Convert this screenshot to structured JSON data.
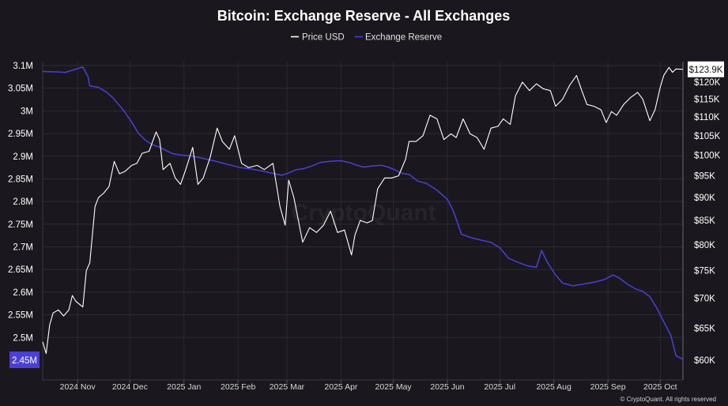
{
  "chart_data": {
    "type": "line",
    "title": "Bitcoin: Exchange Reserve - All Exchanges",
    "legend": [
      "Price USD",
      "Exchange Reserve"
    ],
    "legend_position": "top-center",
    "grid": true,
    "colors": {
      "price": "#ffffff",
      "reserve": "#4b3fd6",
      "background": "#1a181e"
    },
    "y_left": {
      "ticks": [
        "3.1M",
        "3.05M",
        "3M",
        "2.95M",
        "2.9M",
        "2.85M",
        "2.8M",
        "2.75M",
        "2.7M",
        "2.65M",
        "2.6M",
        "2.55M",
        "2.5M"
      ],
      "min": 2.43,
      "max": 3.11
    },
    "y_right": {
      "ticks": [
        "$120K",
        "$115K",
        "$110K",
        "$105K",
        "$100K",
        "$95K",
        "$90K",
        "$85K",
        "$80K",
        "$75K",
        "$70K",
        "$65K",
        "$60K"
      ],
      "scale": "log",
      "min": 58,
      "max": 126
    },
    "x_ticks": [
      "2024 Nov",
      "2024 Dec",
      "2025 Jan",
      "2025 Feb",
      "2025 Mar",
      "2025 Apr",
      "2025 May",
      "2025 Jun",
      "2025 Jul",
      "2025 Aug",
      "2025 Sep",
      "2025 Oct"
    ],
    "x_range": [
      "2024-10-12",
      "2025-10-14"
    ],
    "last_values": {
      "reserve": "2.45M",
      "price": "$123.9K"
    },
    "watermark": "CryptoQuant",
    "credit": "© CryptoQuant. All rights reserved",
    "series": [
      {
        "name": "Exchange Reserve",
        "axis": "left",
        "points": [
          [
            "2024-10-12",
            3.087
          ],
          [
            "2024-10-20",
            3.086
          ],
          [
            "2024-10-25",
            3.085
          ],
          [
            "2024-10-31",
            3.092
          ],
          [
            "2024-11-04",
            3.097
          ],
          [
            "2024-11-07",
            3.075
          ],
          [
            "2024-11-08",
            3.055
          ],
          [
            "2024-11-13",
            3.052
          ],
          [
            "2024-11-18",
            3.04
          ],
          [
            "2024-11-21",
            3.03
          ],
          [
            "2024-11-25",
            3.012
          ],
          [
            "2024-11-28",
            2.998
          ],
          [
            "2024-12-02",
            2.975
          ],
          [
            "2024-12-06",
            2.95
          ],
          [
            "2024-12-10",
            2.935
          ],
          [
            "2024-12-14",
            2.925
          ],
          [
            "2024-12-18",
            2.92
          ],
          [
            "2024-12-22",
            2.912
          ],
          [
            "2024-12-26",
            2.905
          ],
          [
            "2025-01-01",
            2.902
          ],
          [
            "2025-01-06",
            2.9
          ],
          [
            "2025-01-12",
            2.895
          ],
          [
            "2025-01-18",
            2.89
          ],
          [
            "2025-01-23",
            2.885
          ],
          [
            "2025-01-28",
            2.88
          ],
          [
            "2025-02-02",
            2.875
          ],
          [
            "2025-02-08",
            2.872
          ],
          [
            "2025-02-14",
            2.868
          ],
          [
            "2025-02-20",
            2.863
          ],
          [
            "2025-02-26",
            2.858
          ],
          [
            "2025-03-02",
            2.863
          ],
          [
            "2025-03-06",
            2.87
          ],
          [
            "2025-03-10",
            2.872
          ],
          [
            "2025-03-15",
            2.878
          ],
          [
            "2025-03-20",
            2.886
          ],
          [
            "2025-03-26",
            2.889
          ],
          [
            "2025-04-01",
            2.89
          ],
          [
            "2025-04-06",
            2.886
          ],
          [
            "2025-04-10",
            2.88
          ],
          [
            "2025-04-14",
            2.876
          ],
          [
            "2025-04-18",
            2.878
          ],
          [
            "2025-04-24",
            2.88
          ],
          [
            "2025-04-28",
            2.876
          ],
          [
            "2025-05-02",
            2.87
          ],
          [
            "2025-05-06",
            2.862
          ],
          [
            "2025-05-10",
            2.86
          ],
          [
            "2025-05-15",
            2.845
          ],
          [
            "2025-05-20",
            2.84
          ],
          [
            "2025-05-26",
            2.825
          ],
          [
            "2025-06-01",
            2.805
          ],
          [
            "2025-06-04",
            2.782
          ],
          [
            "2025-06-06",
            2.762
          ],
          [
            "2025-06-09",
            2.728
          ],
          [
            "2025-06-15",
            2.72
          ],
          [
            "2025-06-20",
            2.715
          ],
          [
            "2025-06-26",
            2.71
          ],
          [
            "2025-07-01",
            2.698
          ],
          [
            "2025-07-06",
            2.675
          ],
          [
            "2025-07-12",
            2.665
          ],
          [
            "2025-07-17",
            2.658
          ],
          [
            "2025-07-22",
            2.655
          ],
          [
            "2025-07-25",
            2.692
          ],
          [
            "2025-07-28",
            2.668
          ],
          [
            "2025-08-02",
            2.638
          ],
          [
            "2025-08-06",
            2.62
          ],
          [
            "2025-08-12",
            2.614
          ],
          [
            "2025-08-18",
            2.618
          ],
          [
            "2025-08-24",
            2.622
          ],
          [
            "2025-08-30",
            2.628
          ],
          [
            "2025-09-04",
            2.638
          ],
          [
            "2025-09-08",
            2.63
          ],
          [
            "2025-09-12",
            2.618
          ],
          [
            "2025-09-17",
            2.607
          ],
          [
            "2025-09-21",
            2.602
          ],
          [
            "2025-09-25",
            2.59
          ],
          [
            "2025-09-29",
            2.565
          ],
          [
            "2025-10-03",
            2.535
          ],
          [
            "2025-10-07",
            2.505
          ],
          [
            "2025-10-10",
            2.46
          ],
          [
            "2025-10-14",
            2.452
          ]
        ]
      },
      {
        "name": "Price USD",
        "axis": "right",
        "points": [
          [
            "2024-10-12",
            62.8
          ],
          [
            "2024-10-14",
            61.0
          ],
          [
            "2024-10-16",
            65.5
          ],
          [
            "2024-10-18",
            67.5
          ],
          [
            "2024-10-21",
            68.0
          ],
          [
            "2024-10-24",
            67.0
          ],
          [
            "2024-10-27",
            68.0
          ],
          [
            "2024-10-29",
            70.5
          ],
          [
            "2024-10-31",
            69.5
          ],
          [
            "2024-11-04",
            68.5
          ],
          [
            "2024-11-06",
            75.0
          ],
          [
            "2024-11-08",
            76.5
          ],
          [
            "2024-11-11",
            88.0
          ],
          [
            "2024-11-13",
            90.0
          ],
          [
            "2024-11-16",
            91.0
          ],
          [
            "2024-11-19",
            92.5
          ],
          [
            "2024-11-22",
            98.5
          ],
          [
            "2024-11-25",
            95.5
          ],
          [
            "2024-11-28",
            96.0
          ],
          [
            "2024-12-02",
            97.5
          ],
          [
            "2024-12-05",
            98.0
          ],
          [
            "2024-12-08",
            100.5
          ],
          [
            "2024-12-12",
            101.0
          ],
          [
            "2024-12-16",
            106.0
          ],
          [
            "2024-12-18",
            104.0
          ],
          [
            "2024-12-20",
            96.5
          ],
          [
            "2024-12-24",
            98.0
          ],
          [
            "2024-12-27",
            94.5
          ],
          [
            "2024-12-30",
            93.0
          ],
          [
            "2025-01-02",
            96.5
          ],
          [
            "2025-01-06",
            102.0
          ],
          [
            "2025-01-09",
            93.0
          ],
          [
            "2025-01-12",
            94.5
          ],
          [
            "2025-01-16",
            99.5
          ],
          [
            "2025-01-20",
            107.0
          ],
          [
            "2025-01-23",
            103.5
          ],
          [
            "2025-01-27",
            101.5
          ],
          [
            "2025-01-30",
            105.0
          ],
          [
            "2025-02-03",
            98.0
          ],
          [
            "2025-02-07",
            97.0
          ],
          [
            "2025-02-12",
            97.5
          ],
          [
            "2025-02-16",
            96.5
          ],
          [
            "2025-02-21",
            98.0
          ],
          [
            "2025-02-25",
            88.0
          ],
          [
            "2025-02-28",
            84.0
          ],
          [
            "2025-03-02",
            94.0
          ],
          [
            "2025-03-05",
            90.0
          ],
          [
            "2025-03-10",
            80.5
          ],
          [
            "2025-03-14",
            83.5
          ],
          [
            "2025-03-18",
            82.5
          ],
          [
            "2025-03-22",
            84.0
          ],
          [
            "2025-03-26",
            87.0
          ],
          [
            "2025-03-30",
            82.5
          ],
          [
            "2025-04-03",
            83.0
          ],
          [
            "2025-04-07",
            78.0
          ],
          [
            "2025-04-09",
            82.0
          ],
          [
            "2025-04-12",
            85.0
          ],
          [
            "2025-04-16",
            84.5
          ],
          [
            "2025-04-19",
            85.0
          ],
          [
            "2025-04-22",
            92.0
          ],
          [
            "2025-04-26",
            94.5
          ],
          [
            "2025-04-30",
            94.5
          ],
          [
            "2025-05-04",
            95.0
          ],
          [
            "2025-05-08",
            99.0
          ],
          [
            "2025-05-10",
            103.5
          ],
          [
            "2025-05-14",
            103.5
          ],
          [
            "2025-05-18",
            105.0
          ],
          [
            "2025-05-22",
            110.5
          ],
          [
            "2025-05-26",
            109.5
          ],
          [
            "2025-05-30",
            104.0
          ],
          [
            "2025-06-03",
            105.5
          ],
          [
            "2025-06-06",
            104.5
          ],
          [
            "2025-06-10",
            109.5
          ],
          [
            "2025-06-14",
            105.5
          ],
          [
            "2025-06-18",
            104.5
          ],
          [
            "2025-06-22",
            101.5
          ],
          [
            "2025-06-26",
            107.0
          ],
          [
            "2025-06-30",
            107.5
          ],
          [
            "2025-07-03",
            109.5
          ],
          [
            "2025-07-07",
            108.0
          ],
          [
            "2025-07-10",
            116.0
          ],
          [
            "2025-07-14",
            120.0
          ],
          [
            "2025-07-18",
            117.5
          ],
          [
            "2025-07-22",
            119.5
          ],
          [
            "2025-07-26",
            118.0
          ],
          [
            "2025-07-30",
            117.5
          ],
          [
            "2025-08-02",
            113.0
          ],
          [
            "2025-08-06",
            115.0
          ],
          [
            "2025-08-10",
            119.0
          ],
          [
            "2025-08-14",
            122.0
          ],
          [
            "2025-08-17",
            117.5
          ],
          [
            "2025-08-20",
            113.5
          ],
          [
            "2025-08-24",
            113.0
          ],
          [
            "2025-08-28",
            112.0
          ],
          [
            "2025-08-31",
            108.5
          ],
          [
            "2025-09-03",
            111.5
          ],
          [
            "2025-09-06",
            110.5
          ],
          [
            "2025-09-10",
            113.5
          ],
          [
            "2025-09-14",
            115.5
          ],
          [
            "2025-09-18",
            117.0
          ],
          [
            "2025-09-21",
            115.0
          ],
          [
            "2025-09-25",
            109.0
          ],
          [
            "2025-09-28",
            112.0
          ],
          [
            "2025-10-01",
            118.5
          ],
          [
            "2025-10-03",
            122.0
          ],
          [
            "2025-10-06",
            124.5
          ],
          [
            "2025-10-08",
            123.0
          ],
          [
            "2025-10-10",
            124.0
          ],
          [
            "2025-10-14",
            123.9
          ]
        ]
      }
    ]
  }
}
